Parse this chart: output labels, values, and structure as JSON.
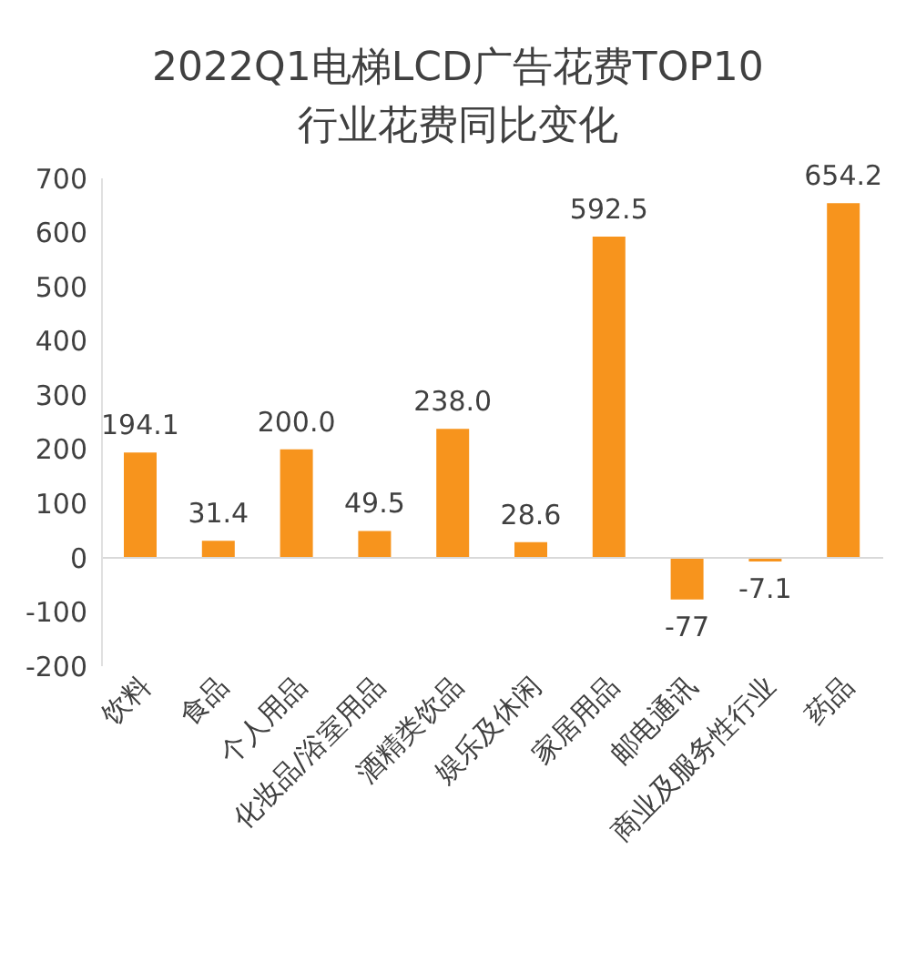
{
  "chart_data": {
    "type": "bar",
    "title": "2022Q1电梯LCD广告花费TOP10",
    "subtitle": "行业花费同比变化",
    "categories": [
      "饮料",
      "食品",
      "个人用品",
      "化妆品/浴室用品",
      "酒精类饮品",
      "娱乐及休闲",
      "家居用品",
      "邮电通讯",
      "商业及服务性行业",
      "药品"
    ],
    "values": [
      194.1,
      31.4,
      200.0,
      49.5,
      238.0,
      28.6,
      592.5,
      -77,
      -7.1,
      654.2
    ],
    "value_labels": [
      "194.1",
      "31.4",
      "200.0",
      "49.5",
      "238.0",
      "28.6",
      "592.5",
      "-77",
      "-7.1",
      "654.2"
    ],
    "color": "#f7941d",
    "ylim": [
      -200,
      700
    ],
    "yticks": [
      -200,
      -100,
      0,
      100,
      200,
      300,
      400,
      500,
      600,
      700
    ],
    "grid": false,
    "legend": false,
    "ref_lines": [
      {
        "axis": "y",
        "value": 0,
        "color": "#d9d9d9"
      }
    ]
  }
}
